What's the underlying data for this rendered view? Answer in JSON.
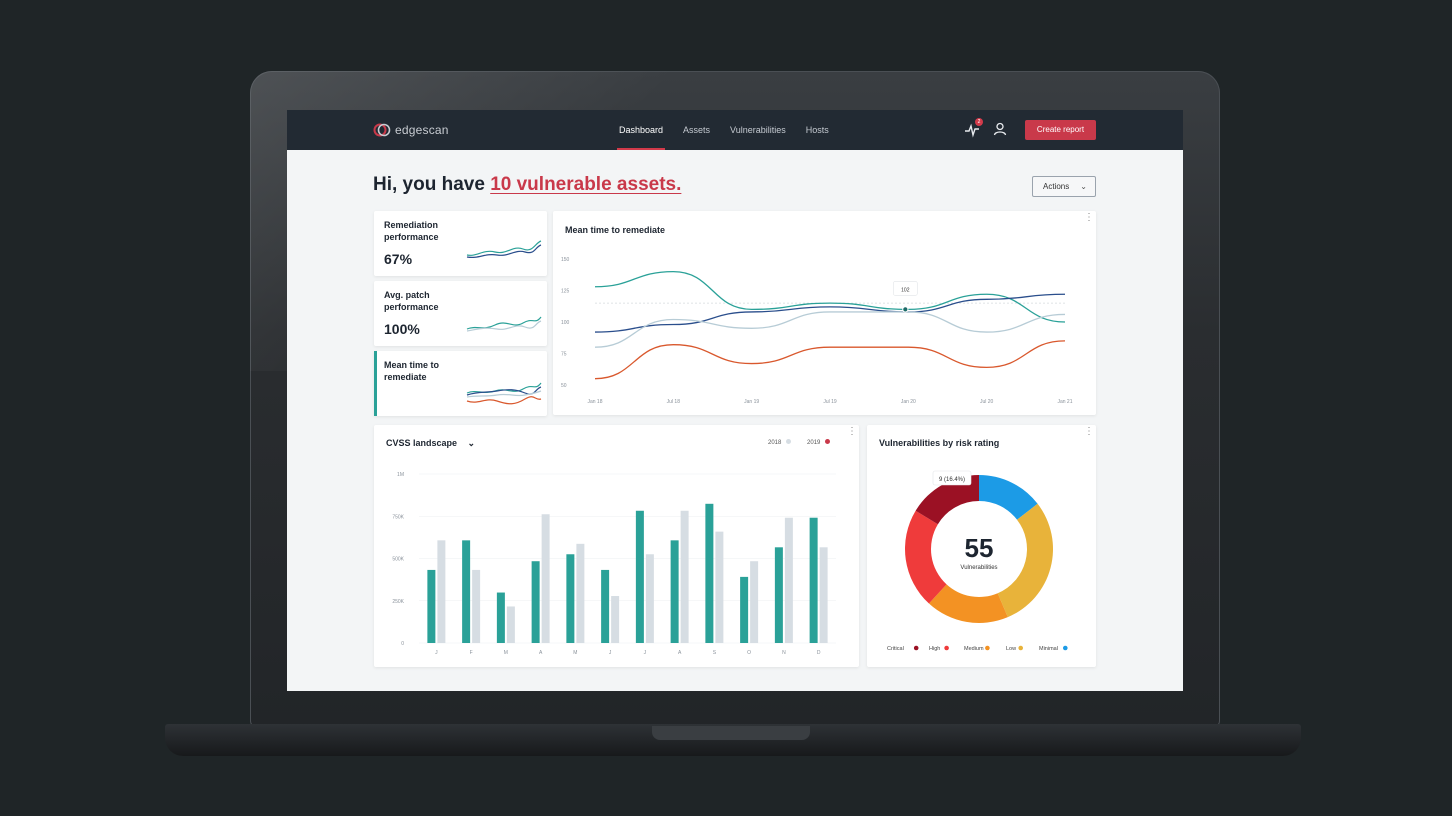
{
  "app": {
    "brand": "edgescan",
    "nav": [
      "Dashboard",
      "Assets",
      "Vulnerabilities",
      "Hosts"
    ],
    "active_nav": "Dashboard",
    "notification_count": "2",
    "create_button": "Create report"
  },
  "header": {
    "greeting_prefix": "Hi, you have",
    "greeting_highlight": "10 vulnerable assets.",
    "actions_label": "Actions"
  },
  "kpis": [
    {
      "title": "Remediation performance",
      "value": "67%"
    },
    {
      "title": "Avg. patch performance",
      "value": "100%"
    },
    {
      "title": "Mean time to remediate",
      "value": ""
    }
  ],
  "chart_data": [
    {
      "type": "line",
      "title": "Mean time to remediate",
      "x": [
        "Jan 18",
        "Jul 18",
        "Jan 19",
        "Jul 19",
        "Jan 20",
        "Jul 20",
        "Jan 21"
      ],
      "ylim": [
        50,
        150
      ],
      "yticks": [
        "150",
        "125",
        "100",
        "75",
        "50"
      ],
      "tooltip": "102",
      "series": [
        {
          "color": "#2aa198",
          "values": [
            128,
            140,
            110,
            115,
            110,
            122,
            100
          ]
        },
        {
          "color": "#2a4e8c",
          "values": [
            92,
            98,
            108,
            112,
            108,
            118,
            122
          ]
        },
        {
          "color": "#b7ccd6",
          "values": [
            80,
            102,
            95,
            108,
            108,
            92,
            106
          ]
        },
        {
          "color": "#d9582d",
          "values": [
            55,
            82,
            67,
            80,
            80,
            64,
            85
          ]
        }
      ]
    },
    {
      "type": "bar",
      "title": "CVSS landscape",
      "categories": [
        "J",
        "F",
        "M",
        "A",
        "M",
        "J",
        "J",
        "A",
        "S",
        "O",
        "N",
        "D"
      ],
      "ylim": [
        0,
        1000000
      ],
      "yticks": [
        "1M",
        "750K",
        "500K",
        "250K",
        "0"
      ],
      "series": [
        {
          "name": "2018",
          "color": "#d6dde3",
          "values": [
            590000,
            420000,
            210000,
            740000,
            570000,
            270000,
            510000,
            760000,
            640000,
            470000,
            720000,
            550000
          ]
        },
        {
          "name": "2019",
          "color": "#2aa198",
          "values": [
            420000,
            590000,
            290000,
            470000,
            510000,
            420000,
            760000,
            590000,
            800000,
            380000,
            550000,
            720000
          ]
        }
      ]
    },
    {
      "type": "pie",
      "title": "Vulnerabilities by risk rating",
      "center_value": "55",
      "center_label": "Vulnerabilities",
      "tooltip": "9 (16.4%)",
      "slices": [
        {
          "label": "Critical",
          "value": 9,
          "color": "#9b1124"
        },
        {
          "label": "High",
          "value": 12,
          "color": "#ef3b3b"
        },
        {
          "label": "Medium",
          "value": 10,
          "color": "#f39223"
        },
        {
          "label": "Low",
          "value": 16,
          "color": "#e8b33a"
        },
        {
          "label": "Minimal",
          "value": 8,
          "color": "#1c9be6"
        }
      ]
    }
  ]
}
